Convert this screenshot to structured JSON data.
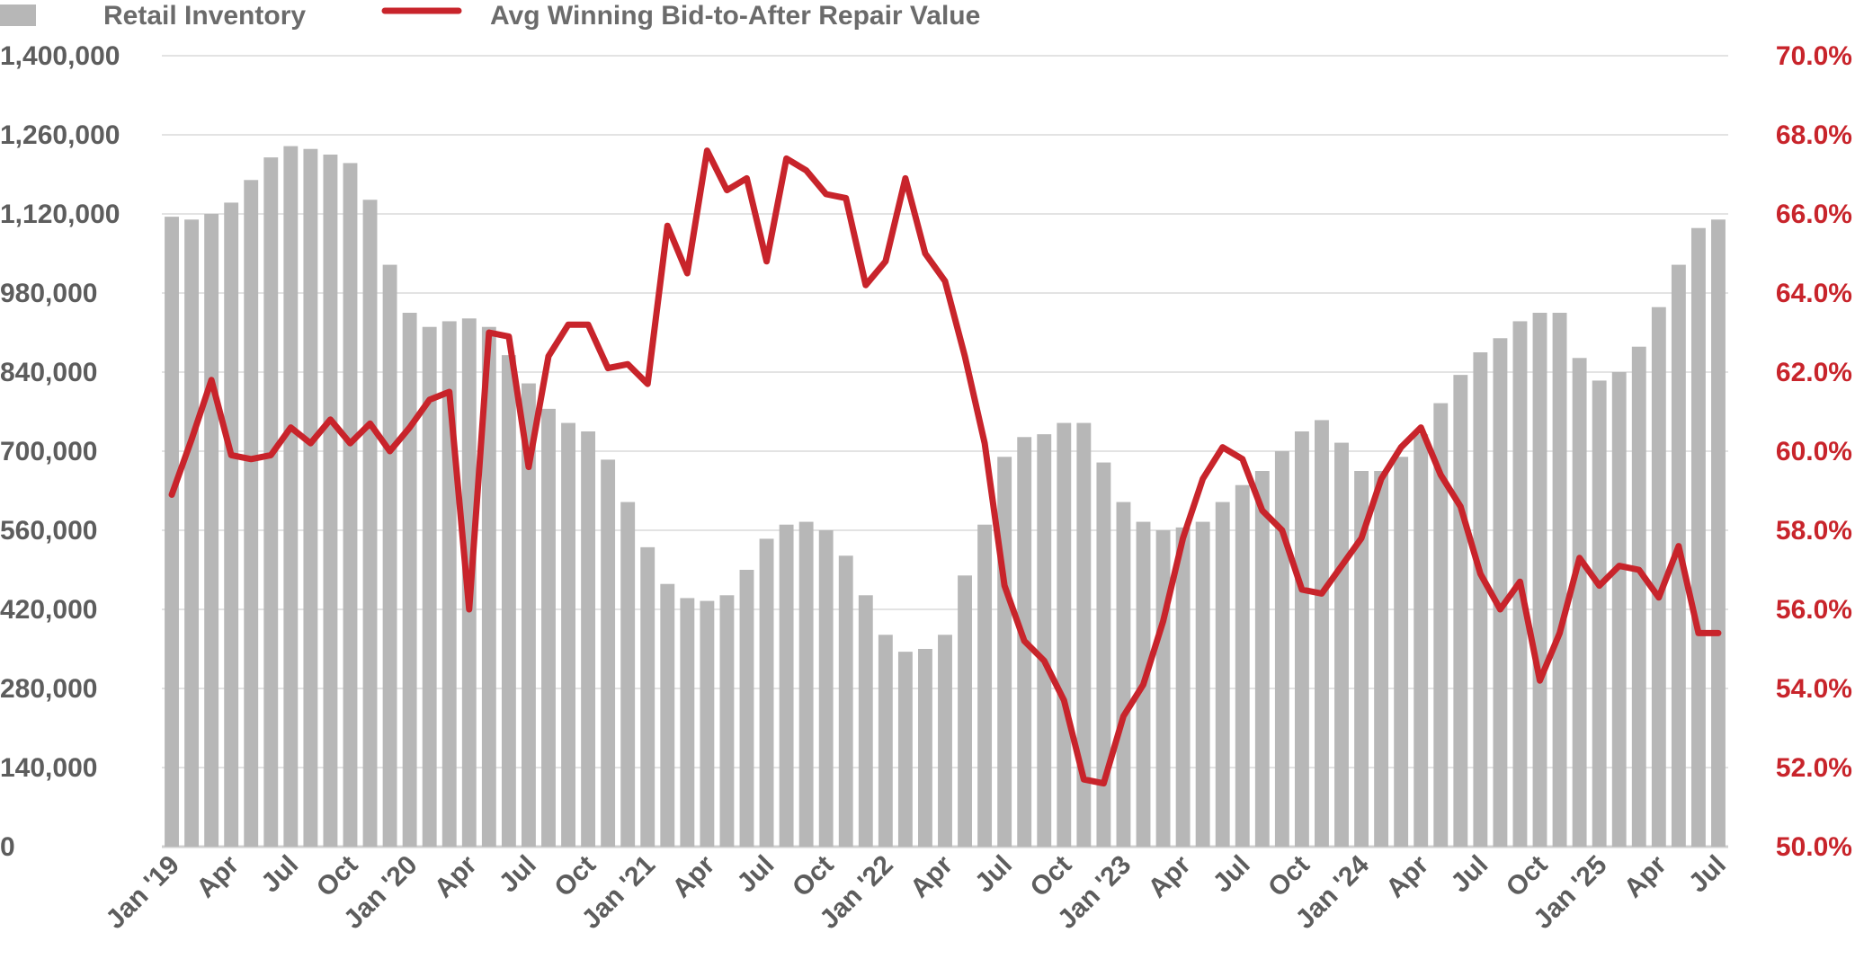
{
  "chart_data": {
    "type": "bar",
    "title": "",
    "xlabel": "",
    "ylabel": "",
    "legend_placement": "top-left",
    "grid": true,
    "colors": {
      "bar": "#b7b7b7",
      "line": "#c8242b",
      "grid": "#e3e3e3",
      "axis": "#cfcfcf",
      "left_text": "#5d5d5d",
      "right_text": "#c8242b"
    },
    "ylim_left": [
      0,
      1400000
    ],
    "ylim_right": [
      50.0,
      70.0
    ],
    "left_ticks": [
      "0",
      "140,000",
      "280,000",
      "420,000",
      "560,000",
      "700,000",
      "840,000",
      "980,000",
      "1,120,000",
      "1,260,000",
      "1,400,000"
    ],
    "right_ticks": [
      "50.0%",
      "52.0%",
      "54.0%",
      "56.0%",
      "58.0%",
      "60.0%",
      "62.0%",
      "64.0%",
      "66.0%",
      "68.0%",
      "70.0%"
    ],
    "x_tick_labels": [
      {
        "index": 0,
        "label": "Jan '19"
      },
      {
        "index": 3,
        "label": "Apr"
      },
      {
        "index": 6,
        "label": "Jul"
      },
      {
        "index": 9,
        "label": "Oct"
      },
      {
        "index": 12,
        "label": "Jan '20"
      },
      {
        "index": 15,
        "label": "Apr"
      },
      {
        "index": 18,
        "label": "Jul"
      },
      {
        "index": 21,
        "label": "Oct"
      },
      {
        "index": 24,
        "label": "Jan '21"
      },
      {
        "index": 27,
        "label": "Apr"
      },
      {
        "index": 30,
        "label": "Jul"
      },
      {
        "index": 33,
        "label": "Oct"
      },
      {
        "index": 36,
        "label": "Jan '22"
      },
      {
        "index": 39,
        "label": "Apr"
      },
      {
        "index": 42,
        "label": "Jul"
      },
      {
        "index": 45,
        "label": "Oct"
      },
      {
        "index": 48,
        "label": "Jan '23"
      },
      {
        "index": 51,
        "label": "Apr"
      },
      {
        "index": 54,
        "label": "Jul"
      },
      {
        "index": 57,
        "label": "Oct"
      },
      {
        "index": 60,
        "label": "Jan '24"
      },
      {
        "index": 63,
        "label": "Apr"
      },
      {
        "index": 66,
        "label": "Jul"
      },
      {
        "index": 69,
        "label": "Oct"
      },
      {
        "index": 72,
        "label": "Jan '25"
      },
      {
        "index": 75,
        "label": "Apr"
      },
      {
        "index": 78,
        "label": "Jul"
      }
    ],
    "series": [
      {
        "name": "Retail Inventory",
        "type": "bar",
        "axis": "left",
        "values": [
          1115000,
          1110000,
          1120000,
          1140000,
          1180000,
          1220000,
          1240000,
          1235000,
          1225000,
          1210000,
          1145000,
          1030000,
          945000,
          920000,
          930000,
          935000,
          920000,
          870000,
          820000,
          775000,
          750000,
          735000,
          685000,
          610000,
          530000,
          465000,
          440000,
          435000,
          445000,
          490000,
          545000,
          570000,
          575000,
          560000,
          515000,
          445000,
          375000,
          345000,
          350000,
          375000,
          480000,
          570000,
          690000,
          725000,
          730000,
          750000,
          750000,
          680000,
          610000,
          575000,
          560000,
          565000,
          575000,
          610000,
          640000,
          665000,
          700000,
          735000,
          755000,
          715000,
          665000,
          665000,
          690000,
          730000,
          785000,
          835000,
          875000,
          900000,
          930000,
          945000,
          945000,
          865000,
          825000,
          840000,
          885000,
          955000,
          1030000,
          1095000,
          1110000
        ]
      },
      {
        "name": "Avg Winning Bid-to-After Repair Value",
        "type": "line",
        "axis": "right",
        "values": [
          58.9,
          60.3,
          61.8,
          59.9,
          59.8,
          59.9,
          60.6,
          60.2,
          60.8,
          60.2,
          60.7,
          60.0,
          60.6,
          61.3,
          61.5,
          56.0,
          63.0,
          62.9,
          59.6,
          62.4,
          63.2,
          63.2,
          62.1,
          62.2,
          61.7,
          65.7,
          64.5,
          67.6,
          66.6,
          66.9,
          64.8,
          67.4,
          67.1,
          66.5,
          66.4,
          64.2,
          64.8,
          66.9,
          65.0,
          64.3,
          62.4,
          60.2,
          56.6,
          55.2,
          54.7,
          53.7,
          51.7,
          51.6,
          53.3,
          54.1,
          55.7,
          57.8,
          59.3,
          60.1,
          59.8,
          58.5,
          58.0,
          56.5,
          56.4,
          57.1,
          57.8,
          59.3,
          60.1,
          60.6,
          59.4,
          58.6,
          56.9,
          56.0,
          56.7,
          54.2,
          55.4,
          57.3,
          56.6,
          57.1,
          57.0,
          56.3,
          57.6,
          55.4,
          55.4
        ]
      }
    ]
  },
  "legend": [
    {
      "label": "Retail Inventory",
      "kind": "bar"
    },
    {
      "label": "Avg Winning Bid-to-After Repair Value",
      "kind": "line"
    }
  ]
}
